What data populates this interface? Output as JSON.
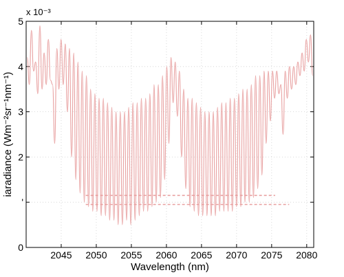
{
  "chart_data": {
    "type": "line",
    "title": "",
    "xlabel": "Wavelength (nm)",
    "ylabel": "iaradiance (Wm⁻²sr⁻¹nm⁻¹)",
    "y_exponent_label": "x 10⁻³",
    "xlim": [
      2040,
      2081
    ],
    "ylim": [
      0,
      5
    ],
    "x_ticks": [
      2045,
      2050,
      2055,
      2060,
      2065,
      2070,
      2075,
      2080
    ],
    "y_ticks": [
      0,
      1,
      2,
      3,
      4,
      5
    ],
    "y_tick_labels": [
      "0",
      "'",
      "2",
      "3",
      "4",
      "5"
    ],
    "grid": true,
    "legend": "none",
    "line_color": "#e8a0a0",
    "series": [
      {
        "name": "",
        "sampling_nm": 0.6,
        "x_start": 2040,
        "x_end": 2081,
        "peaks": [
          4.2,
          4.8,
          4.1,
          4.9,
          4.3,
          4.6,
          3.6,
          4.4,
          4.6,
          4.5,
          4.4,
          4.3,
          4.1,
          3.9,
          3.8,
          3.5,
          3.4,
          3.3,
          3.3,
          3.2,
          3.1,
          3.0,
          3.0,
          3.0,
          3.1,
          3.2,
          3.2,
          3.3,
          3.3,
          3.4,
          3.6,
          3.6,
          3.8,
          4.0,
          4.2,
          4.1,
          3.9,
          3.5,
          3.3,
          3.3,
          3.2,
          3.1,
          3.0,
          3.0,
          3.0,
          3.1,
          3.2,
          3.2,
          3.3,
          3.3,
          3.4,
          3.5,
          3.5,
          3.6,
          3.8,
          3.8,
          3.9,
          3.9,
          3.9,
          3.9,
          3.6,
          3.9,
          4.0,
          4.0,
          4.1,
          4.3,
          4.6,
          4.7
        ],
        "troughs": [
          3.6,
          3.9,
          3.4,
          3.5,
          3.6,
          3.7,
          2.3,
          3.5,
          3.6,
          3.0,
          2.0,
          1.5,
          1.2,
          1.0,
          0.9,
          0.8,
          0.8,
          0.7,
          0.7,
          0.6,
          0.6,
          0.5,
          0.5,
          0.6,
          0.5,
          0.6,
          0.7,
          0.8,
          0.8,
          0.9,
          1.0,
          1.1,
          1.5,
          2.3,
          3.2,
          2.9,
          2.0,
          1.3,
          0.9,
          0.8,
          0.7,
          0.7,
          0.7,
          0.7,
          0.7,
          0.8,
          0.8,
          0.8,
          0.8,
          0.9,
          0.9,
          1.0,
          1.0,
          1.1,
          1.3,
          1.6,
          2.3,
          2.8,
          3.3,
          3.4,
          2.5,
          3.3,
          3.5,
          3.6,
          3.8,
          3.9,
          4.1,
          3.8
        ]
      }
    ],
    "annotations": [
      {
        "text": "dashed low-level segments",
        "y": 1.15,
        "x_from": 2048.5,
        "x_to": 2075.5
      },
      {
        "text": "dashed low-level segments",
        "y": 0.95,
        "x_from": 2048.5,
        "x_to": 2077.5
      }
    ]
  }
}
